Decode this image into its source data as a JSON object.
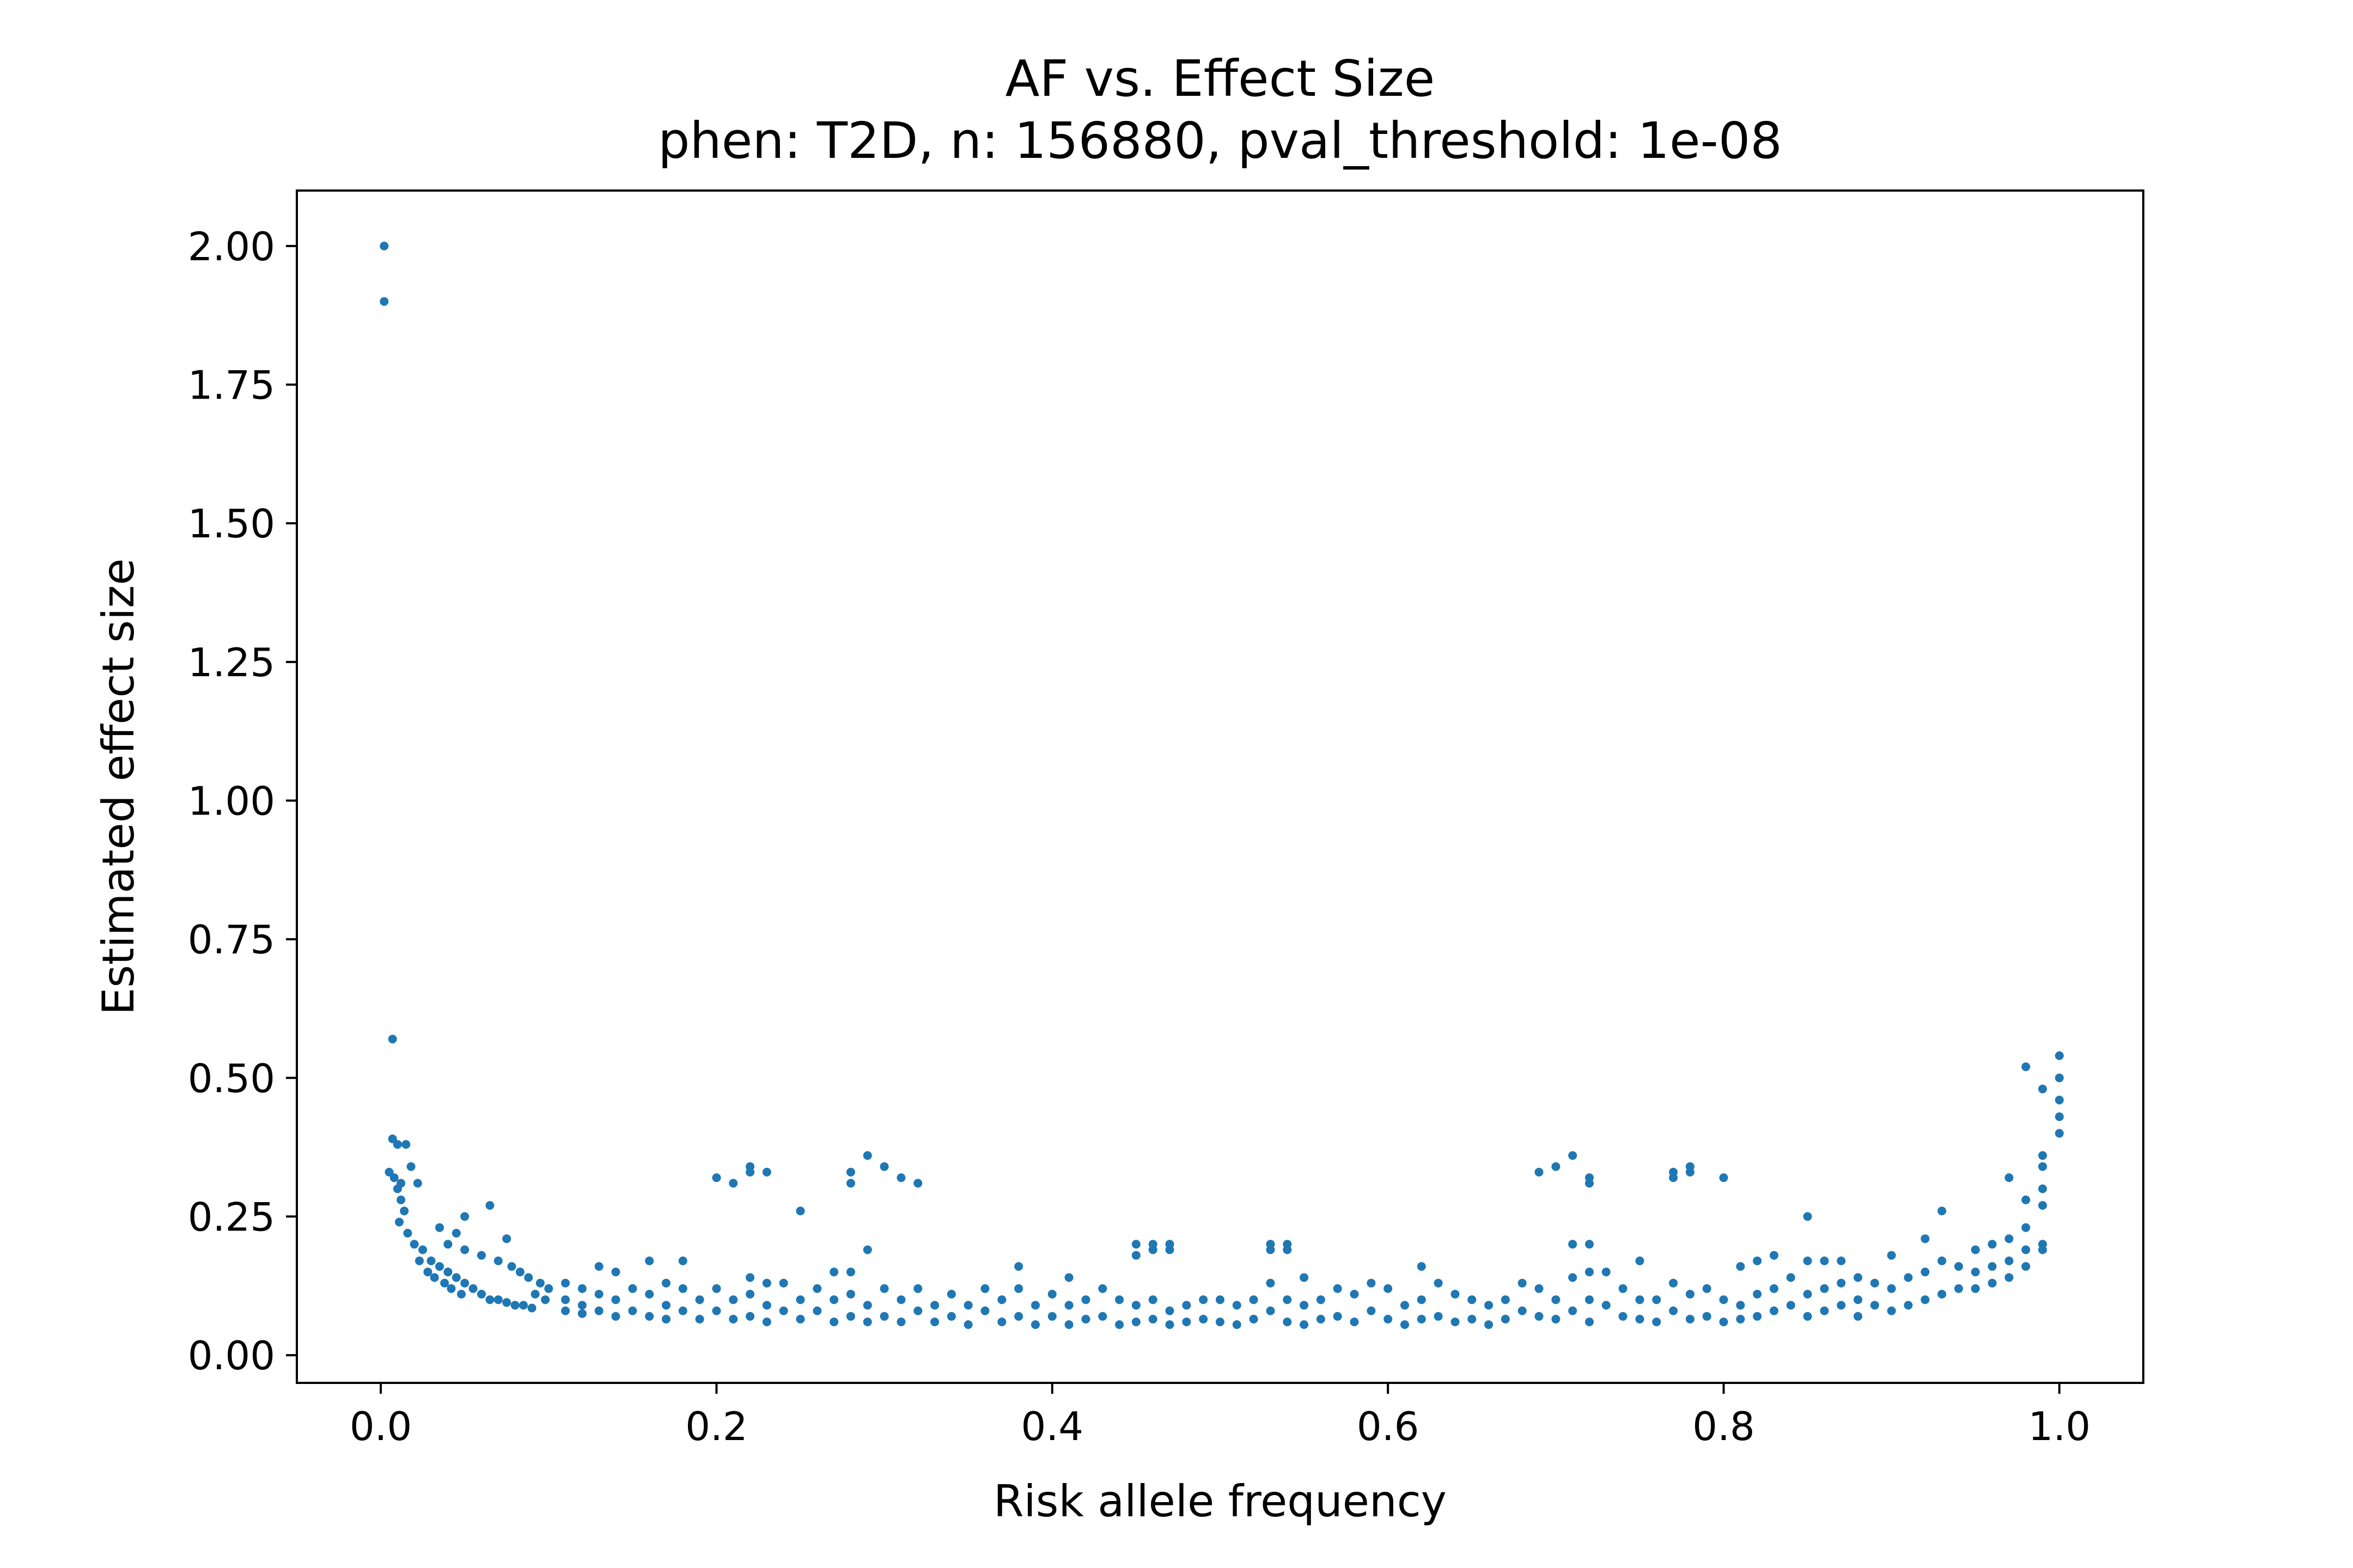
{
  "chart_data": {
    "type": "scatter",
    "title": "AF vs. Effect Size",
    "subtitle": "phen: T2D, n: 156880, pval_threshold: 1e-08",
    "xlabel": "Risk allele frequency",
    "ylabel": "Estimated effect size",
    "xlim": [
      -0.05,
      1.05
    ],
    "ylim": [
      -0.05,
      2.1
    ],
    "xticks": [
      0.0,
      0.2,
      0.4,
      0.6,
      0.8,
      1.0
    ],
    "xtick_labels": [
      "0.0",
      "0.2",
      "0.4",
      "0.6",
      "0.8",
      "1.0"
    ],
    "yticks": [
      0.0,
      0.25,
      0.5,
      0.75,
      1.0,
      1.25,
      1.5,
      1.75,
      2.0
    ],
    "ytick_labels": [
      "0.00",
      "0.25",
      "0.50",
      "0.75",
      "1.00",
      "1.25",
      "1.50",
      "1.75",
      "2.00"
    ],
    "grid": false,
    "marker_color": "#1f77b4",
    "series": [
      {
        "points": [
          [
            0.002,
            2.0
          ],
          [
            0.002,
            1.9
          ],
          [
            0.007,
            0.57
          ],
          [
            0.007,
            0.39
          ],
          [
            0.01,
            0.38
          ],
          [
            0.015,
            0.38
          ],
          [
            0.005,
            0.33
          ],
          [
            0.008,
            0.32
          ],
          [
            0.012,
            0.31
          ],
          [
            0.018,
            0.34
          ],
          [
            0.022,
            0.31
          ],
          [
            0.01,
            0.3
          ],
          [
            0.012,
            0.28
          ],
          [
            0.014,
            0.26
          ],
          [
            0.011,
            0.24
          ],
          [
            0.016,
            0.22
          ],
          [
            0.02,
            0.2
          ],
          [
            0.025,
            0.19
          ],
          [
            0.023,
            0.17
          ],
          [
            0.03,
            0.17
          ],
          [
            0.035,
            0.16
          ],
          [
            0.028,
            0.15
          ],
          [
            0.04,
            0.15
          ],
          [
            0.032,
            0.14
          ],
          [
            0.045,
            0.14
          ],
          [
            0.038,
            0.13
          ],
          [
            0.05,
            0.13
          ],
          [
            0.042,
            0.12
          ],
          [
            0.055,
            0.12
          ],
          [
            0.048,
            0.11
          ],
          [
            0.06,
            0.11
          ],
          [
            0.065,
            0.1
          ],
          [
            0.07,
            0.1
          ],
          [
            0.075,
            0.095
          ],
          [
            0.08,
            0.09
          ],
          [
            0.085,
            0.09
          ],
          [
            0.09,
            0.085
          ],
          [
            0.035,
            0.23
          ],
          [
            0.045,
            0.22
          ],
          [
            0.05,
            0.25
          ],
          [
            0.04,
            0.2
          ],
          [
            0.05,
            0.19
          ],
          [
            0.06,
            0.18
          ],
          [
            0.065,
            0.27
          ],
          [
            0.075,
            0.21
          ],
          [
            0.07,
            0.17
          ],
          [
            0.078,
            0.16
          ],
          [
            0.083,
            0.15
          ],
          [
            0.088,
            0.14
          ],
          [
            0.095,
            0.13
          ],
          [
            0.1,
            0.12
          ],
          [
            0.092,
            0.11
          ],
          [
            0.098,
            0.1
          ],
          [
            0.11,
            0.13
          ],
          [
            0.11,
            0.1
          ],
          [
            0.11,
            0.08
          ],
          [
            0.12,
            0.12
          ],
          [
            0.12,
            0.09
          ],
          [
            0.12,
            0.075
          ],
          [
            0.13,
            0.16
          ],
          [
            0.13,
            0.11
          ],
          [
            0.13,
            0.08
          ],
          [
            0.14,
            0.15
          ],
          [
            0.14,
            0.1
          ],
          [
            0.14,
            0.07
          ],
          [
            0.15,
            0.12
          ],
          [
            0.15,
            0.08
          ],
          [
            0.16,
            0.17
          ],
          [
            0.16,
            0.11
          ],
          [
            0.16,
            0.07
          ],
          [
            0.17,
            0.13
          ],
          [
            0.17,
            0.09
          ],
          [
            0.17,
            0.065
          ],
          [
            0.18,
            0.17
          ],
          [
            0.18,
            0.12
          ],
          [
            0.18,
            0.08
          ],
          [
            0.19,
            0.1
          ],
          [
            0.19,
            0.065
          ],
          [
            0.2,
            0.32
          ],
          [
            0.21,
            0.31
          ],
          [
            0.22,
            0.34
          ],
          [
            0.22,
            0.33
          ],
          [
            0.23,
            0.33
          ],
          [
            0.2,
            0.12
          ],
          [
            0.2,
            0.08
          ],
          [
            0.21,
            0.1
          ],
          [
            0.21,
            0.065
          ],
          [
            0.22,
            0.14
          ],
          [
            0.22,
            0.11
          ],
          [
            0.22,
            0.07
          ],
          [
            0.23,
            0.13
          ],
          [
            0.23,
            0.09
          ],
          [
            0.23,
            0.06
          ],
          [
            0.24,
            0.13
          ],
          [
            0.24,
            0.08
          ],
          [
            0.25,
            0.26
          ],
          [
            0.25,
            0.1
          ],
          [
            0.25,
            0.065
          ],
          [
            0.26,
            0.12
          ],
          [
            0.26,
            0.08
          ],
          [
            0.27,
            0.15
          ],
          [
            0.27,
            0.1
          ],
          [
            0.27,
            0.06
          ],
          [
            0.28,
            0.15
          ],
          [
            0.28,
            0.11
          ],
          [
            0.28,
            0.07
          ],
          [
            0.28,
            0.33
          ],
          [
            0.28,
            0.31
          ],
          [
            0.29,
            0.36
          ],
          [
            0.29,
            0.19
          ],
          [
            0.29,
            0.09
          ],
          [
            0.29,
            0.06
          ],
          [
            0.3,
            0.34
          ],
          [
            0.3,
            0.12
          ],
          [
            0.3,
            0.07
          ],
          [
            0.31,
            0.32
          ],
          [
            0.31,
            0.1
          ],
          [
            0.31,
            0.06
          ],
          [
            0.32,
            0.31
          ],
          [
            0.32,
            0.12
          ],
          [
            0.32,
            0.08
          ],
          [
            0.33,
            0.09
          ],
          [
            0.33,
            0.06
          ],
          [
            0.34,
            0.11
          ],
          [
            0.34,
            0.07
          ],
          [
            0.35,
            0.09
          ],
          [
            0.35,
            0.055
          ],
          [
            0.36,
            0.12
          ],
          [
            0.36,
            0.08
          ],
          [
            0.37,
            0.1
          ],
          [
            0.37,
            0.06
          ],
          [
            0.38,
            0.16
          ],
          [
            0.38,
            0.12
          ],
          [
            0.38,
            0.07
          ],
          [
            0.39,
            0.09
          ],
          [
            0.39,
            0.055
          ],
          [
            0.4,
            0.11
          ],
          [
            0.4,
            0.07
          ],
          [
            0.41,
            0.14
          ],
          [
            0.41,
            0.09
          ],
          [
            0.41,
            0.055
          ],
          [
            0.42,
            0.1
          ],
          [
            0.42,
            0.065
          ],
          [
            0.43,
            0.12
          ],
          [
            0.43,
            0.07
          ],
          [
            0.44,
            0.1
          ],
          [
            0.44,
            0.055
          ],
          [
            0.45,
            0.2
          ],
          [
            0.45,
            0.18
          ],
          [
            0.46,
            0.2
          ],
          [
            0.46,
            0.19
          ],
          [
            0.47,
            0.2
          ],
          [
            0.47,
            0.19
          ],
          [
            0.45,
            0.09
          ],
          [
            0.45,
            0.06
          ],
          [
            0.46,
            0.1
          ],
          [
            0.46,
            0.065
          ],
          [
            0.47,
            0.08
          ],
          [
            0.47,
            0.055
          ],
          [
            0.48,
            0.09
          ],
          [
            0.48,
            0.06
          ],
          [
            0.49,
            0.1
          ],
          [
            0.49,
            0.065
          ],
          [
            0.5,
            0.1
          ],
          [
            0.5,
            0.06
          ],
          [
            0.51,
            0.09
          ],
          [
            0.51,
            0.055
          ],
          [
            0.52,
            0.1
          ],
          [
            0.52,
            0.065
          ],
          [
            0.53,
            0.2
          ],
          [
            0.53,
            0.19
          ],
          [
            0.54,
            0.2
          ],
          [
            0.54,
            0.19
          ],
          [
            0.53,
            0.13
          ],
          [
            0.53,
            0.08
          ],
          [
            0.54,
            0.1
          ],
          [
            0.54,
            0.06
          ],
          [
            0.55,
            0.14
          ],
          [
            0.55,
            0.09
          ],
          [
            0.55,
            0.055
          ],
          [
            0.56,
            0.1
          ],
          [
            0.56,
            0.065
          ],
          [
            0.57,
            0.12
          ],
          [
            0.57,
            0.07
          ],
          [
            0.58,
            0.11
          ],
          [
            0.58,
            0.06
          ],
          [
            0.59,
            0.13
          ],
          [
            0.59,
            0.08
          ],
          [
            0.6,
            0.12
          ],
          [
            0.6,
            0.065
          ],
          [
            0.61,
            0.09
          ],
          [
            0.61,
            0.055
          ],
          [
            0.62,
            0.16
          ],
          [
            0.62,
            0.1
          ],
          [
            0.62,
            0.065
          ],
          [
            0.63,
            0.13
          ],
          [
            0.63,
            0.07
          ],
          [
            0.64,
            0.11
          ],
          [
            0.64,
            0.06
          ],
          [
            0.65,
            0.1
          ],
          [
            0.65,
            0.065
          ],
          [
            0.66,
            0.09
          ],
          [
            0.66,
            0.055
          ],
          [
            0.67,
            0.1
          ],
          [
            0.67,
            0.065
          ],
          [
            0.68,
            0.13
          ],
          [
            0.68,
            0.08
          ],
          [
            0.69,
            0.33
          ],
          [
            0.69,
            0.12
          ],
          [
            0.69,
            0.07
          ],
          [
            0.7,
            0.34
          ],
          [
            0.7,
            0.1
          ],
          [
            0.7,
            0.065
          ],
          [
            0.71,
            0.36
          ],
          [
            0.71,
            0.2
          ],
          [
            0.71,
            0.14
          ],
          [
            0.71,
            0.08
          ],
          [
            0.72,
            0.32
          ],
          [
            0.72,
            0.31
          ],
          [
            0.72,
            0.2
          ],
          [
            0.72,
            0.15
          ],
          [
            0.72,
            0.1
          ],
          [
            0.72,
            0.06
          ],
          [
            0.73,
            0.15
          ],
          [
            0.73,
            0.09
          ],
          [
            0.74,
            0.12
          ],
          [
            0.74,
            0.07
          ],
          [
            0.75,
            0.17
          ],
          [
            0.75,
            0.1
          ],
          [
            0.75,
            0.065
          ],
          [
            0.76,
            0.1
          ],
          [
            0.76,
            0.06
          ],
          [
            0.77,
            0.33
          ],
          [
            0.77,
            0.32
          ],
          [
            0.77,
            0.13
          ],
          [
            0.77,
            0.08
          ],
          [
            0.78,
            0.34
          ],
          [
            0.78,
            0.33
          ],
          [
            0.78,
            0.11
          ],
          [
            0.78,
            0.065
          ],
          [
            0.79,
            0.12
          ],
          [
            0.79,
            0.07
          ],
          [
            0.8,
            0.32
          ],
          [
            0.8,
            0.1
          ],
          [
            0.8,
            0.06
          ],
          [
            0.81,
            0.16
          ],
          [
            0.81,
            0.09
          ],
          [
            0.81,
            0.065
          ],
          [
            0.82,
            0.17
          ],
          [
            0.82,
            0.11
          ],
          [
            0.82,
            0.07
          ],
          [
            0.83,
            0.18
          ],
          [
            0.83,
            0.12
          ],
          [
            0.83,
            0.08
          ],
          [
            0.84,
            0.14
          ],
          [
            0.84,
            0.09
          ],
          [
            0.85,
            0.25
          ],
          [
            0.85,
            0.17
          ],
          [
            0.85,
            0.11
          ],
          [
            0.85,
            0.07
          ],
          [
            0.86,
            0.17
          ],
          [
            0.86,
            0.12
          ],
          [
            0.86,
            0.08
          ],
          [
            0.87,
            0.17
          ],
          [
            0.87,
            0.13
          ],
          [
            0.87,
            0.09
          ],
          [
            0.88,
            0.14
          ],
          [
            0.88,
            0.1
          ],
          [
            0.88,
            0.07
          ],
          [
            0.89,
            0.13
          ],
          [
            0.89,
            0.09
          ],
          [
            0.9,
            0.18
          ],
          [
            0.9,
            0.12
          ],
          [
            0.9,
            0.08
          ],
          [
            0.91,
            0.14
          ],
          [
            0.91,
            0.09
          ],
          [
            0.92,
            0.21
          ],
          [
            0.92,
            0.15
          ],
          [
            0.92,
            0.1
          ],
          [
            0.93,
            0.26
          ],
          [
            0.93,
            0.17
          ],
          [
            0.93,
            0.11
          ],
          [
            0.94,
            0.16
          ],
          [
            0.94,
            0.12
          ],
          [
            0.95,
            0.19
          ],
          [
            0.95,
            0.15
          ],
          [
            0.95,
            0.12
          ],
          [
            0.96,
            0.2
          ],
          [
            0.96,
            0.16
          ],
          [
            0.96,
            0.13
          ],
          [
            0.97,
            0.32
          ],
          [
            0.97,
            0.21
          ],
          [
            0.97,
            0.17
          ],
          [
            0.97,
            0.14
          ],
          [
            0.98,
            0.52
          ],
          [
            0.98,
            0.28
          ],
          [
            0.98,
            0.23
          ],
          [
            0.98,
            0.19
          ],
          [
            0.98,
            0.16
          ],
          [
            0.99,
            0.48
          ],
          [
            0.99,
            0.36
          ],
          [
            0.99,
            0.34
          ],
          [
            0.99,
            0.3
          ],
          [
            0.99,
            0.27
          ],
          [
            0.99,
            0.2
          ],
          [
            0.99,
            0.19
          ],
          [
            1.0,
            0.54
          ],
          [
            1.0,
            0.5
          ],
          [
            1.0,
            0.46
          ],
          [
            1.0,
            0.43
          ],
          [
            1.0,
            0.4
          ]
        ]
      }
    ]
  }
}
